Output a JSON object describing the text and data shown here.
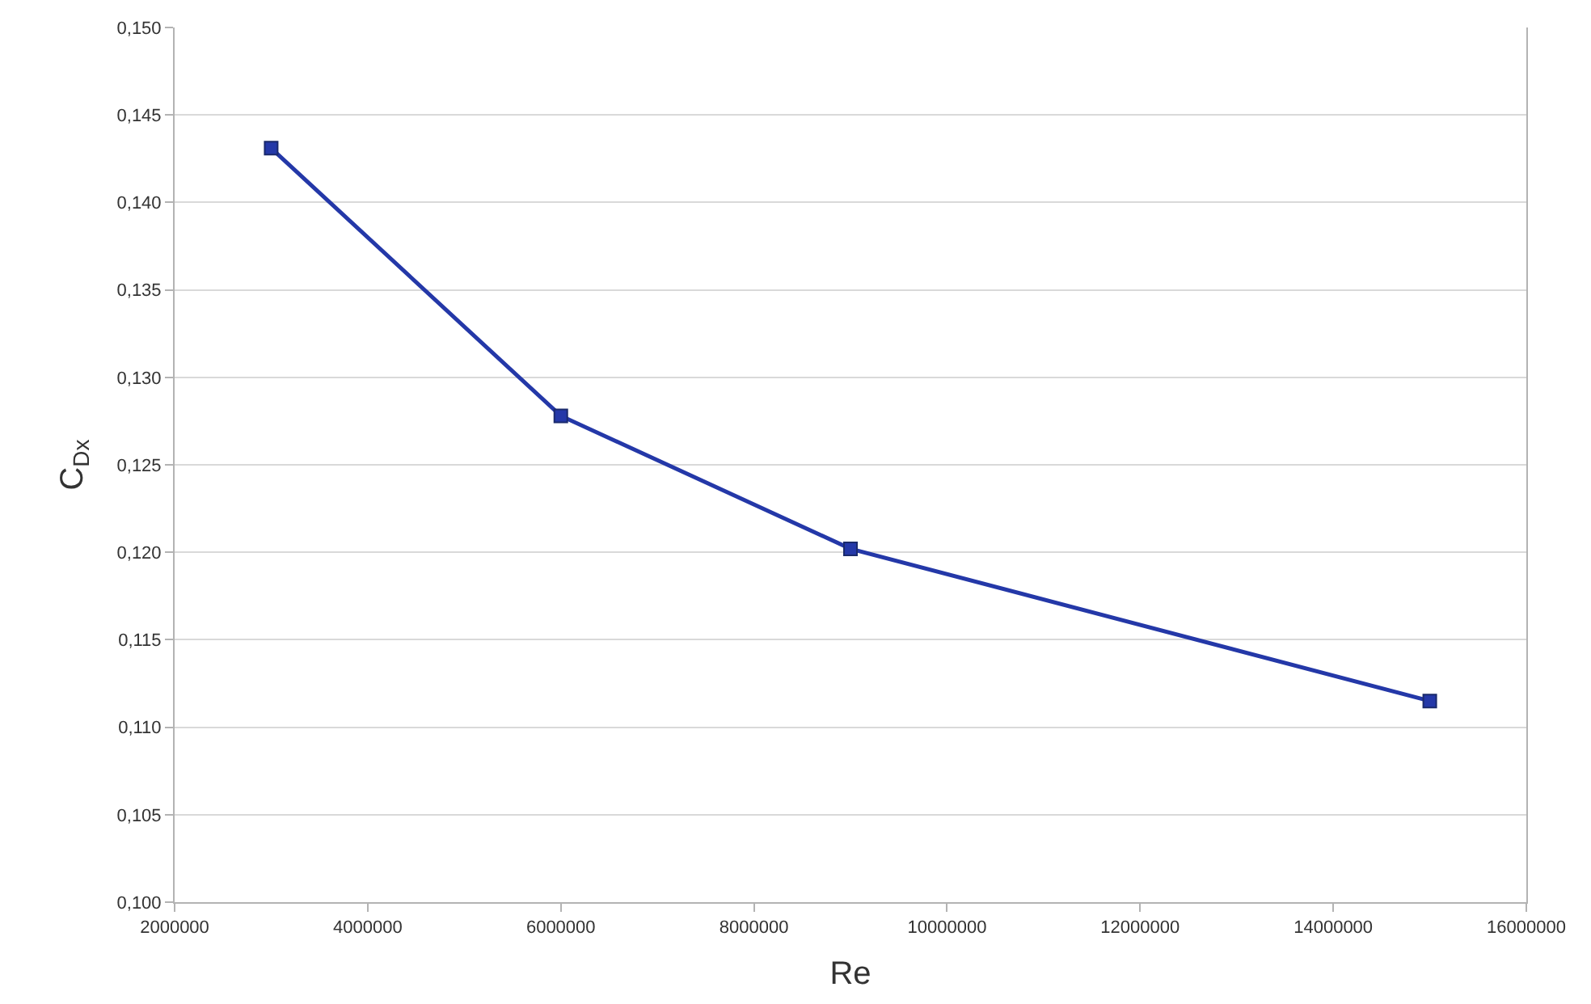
{
  "chart_data": {
    "type": "line",
    "xlabel": "Re",
    "ylabel": "C$_{Dx}$",
    "x": [
      3000000,
      6000000,
      9000000,
      15000000
    ],
    "series": [
      {
        "color": "#2438a8",
        "values": [
          0.1431,
          0.1278,
          0.1202,
          0.1115
        ]
      }
    ],
    "xlim": [
      2000000,
      16000000
    ],
    "xticks": [
      2000000,
      4000000,
      6000000,
      8000000,
      10000000,
      12000000,
      14000000,
      16000000
    ],
    "ylim": [
      0.1,
      0.15
    ],
    "yticks": [
      {
        "value": 0.1,
        "label": "0,100"
      },
      {
        "value": 0.105,
        "label": "0,105"
      },
      {
        "value": 0.11,
        "label": "0,110"
      },
      {
        "value": 0.115,
        "label": "0,115"
      },
      {
        "value": 0.12,
        "label": "0,120"
      },
      {
        "value": 0.125,
        "label": "0,125"
      },
      {
        "value": 0.13,
        "label": "0,130"
      },
      {
        "value": 0.135,
        "label": "0,135"
      },
      {
        "value": 0.14,
        "label": "0,140"
      },
      {
        "value": 0.145,
        "label": "0,145"
      },
      {
        "value": 0.15,
        "label": "0,150"
      }
    ],
    "grid": "y",
    "marker": "square",
    "line_style": "solid",
    "legend": false
  }
}
